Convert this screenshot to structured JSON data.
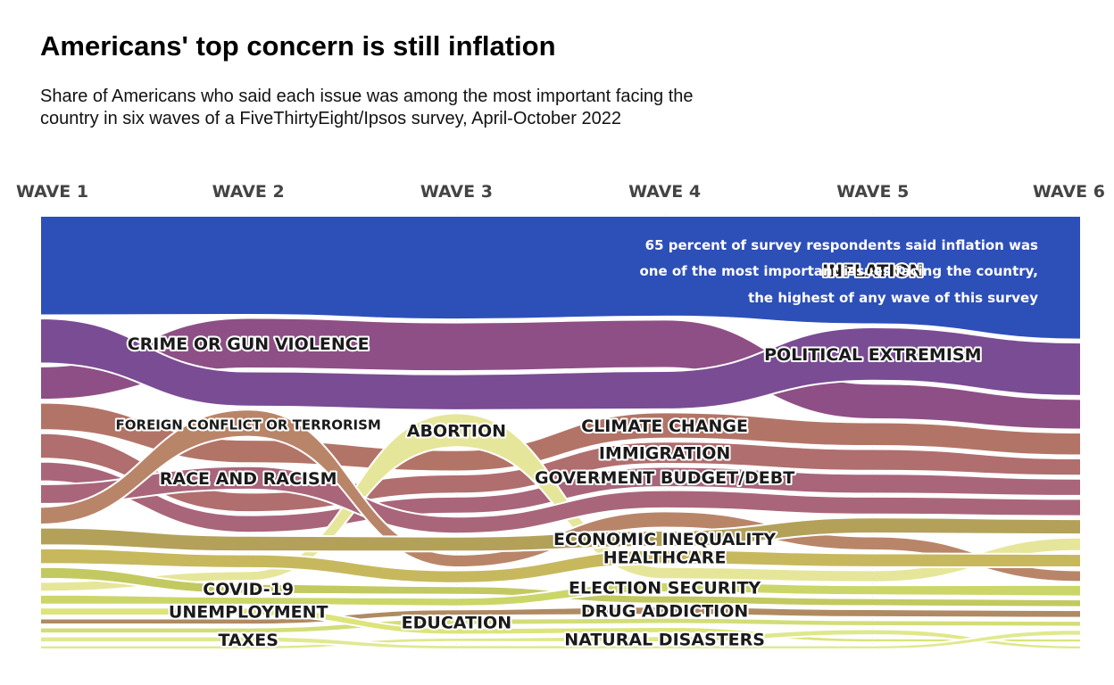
{
  "title": "Americans' top concern is still inflation",
  "subtitle": "Share of Americans who said each issue was among the most important facing the\n country in six waves of a FiveThirtyEight/Ipsos survey, April-October 2022",
  "annotation": [
    "65 percent of survey respondents said inflation was",
    "one of the most important issues facing the country,",
    "the highest of any wave of this survey"
  ],
  "chart_data": {
    "type": "area",
    "subtype": "ranked stream / bump area chart",
    "x": [
      "WAVE 1",
      "WAVE 2",
      "WAVE 3",
      "WAVE 4",
      "WAVE 5",
      "WAVE 6"
    ],
    "series": [
      {
        "name": "INFLATION",
        "color": "#2d4fb8",
        "values": [
          51,
          51,
          49,
          50,
          55,
          65
        ]
      },
      {
        "name": "CRIME OR GUN VIOLENCE",
        "color": "#8e4f86",
        "values": [
          17,
          26,
          23,
          24,
          18,
          16
        ]
      },
      {
        "name": "POLITICAL EXTREMISM",
        "color": "#7a4c94",
        "values": [
          23,
          18,
          17,
          19,
          27,
          28
        ]
      },
      {
        "name": "CLIMATE CHANGE",
        "color": "#b37468",
        "values": [
          14,
          12,
          10,
          13,
          12,
          12
        ]
      },
      {
        "name": "IMMIGRATION",
        "color": "#b06e6e",
        "values": [
          13,
          10,
          9,
          11,
          11,
          9
        ]
      },
      {
        "name": "GOVERMENT BUDGET/DEBT",
        "color": "#a9657a",
        "values": [
          10,
          9,
          8,
          10,
          10,
          9
        ]
      },
      {
        "name": "ABORTION",
        "color": "#e6e69a",
        "values": [
          5,
          5,
          16,
          6,
          6,
          7
        ]
      },
      {
        "name": "RACE AND RACISM",
        "color": "#a9667a",
        "values": [
          10,
          12,
          8,
          9,
          9,
          9
        ]
      },
      {
        "name": "FOREIGN CONFLICT OR TERRORISM",
        "color": "#b98569",
        "values": [
          9,
          14,
          6,
          8,
          7,
          6
        ]
      },
      {
        "name": "ECONOMIC INEQUALITY",
        "color": "#b3a15a",
        "values": [
          9,
          8,
          7,
          8,
          8,
          8
        ]
      },
      {
        "name": "HEALTHCARE",
        "color": "#c7b85e",
        "values": [
          8,
          7,
          6,
          7,
          7,
          7
        ]
      },
      {
        "name": "COVID-19",
        "color": "#c2c960",
        "values": [
          6,
          5,
          4,
          4,
          4,
          4
        ]
      },
      {
        "name": "ELECTION SECURITY",
        "color": "#cbd668",
        "values": [
          5,
          4,
          4,
          5,
          5,
          6
        ]
      },
      {
        "name": "DRUG ADDICTION",
        "color": "#b08a63",
        "values": [
          3,
          3,
          3,
          4,
          4,
          4
        ]
      },
      {
        "name": "EDUCATION",
        "color": "#d3dd78",
        "values": [
          3,
          3,
          3,
          3,
          3,
          3
        ]
      },
      {
        "name": "UNEMPLOYMENT",
        "color": "#dce47a",
        "values": [
          4,
          4,
          3,
          3,
          2,
          2
        ]
      },
      {
        "name": "NATURAL DISASTERS",
        "color": "#dfe88a",
        "values": [
          2,
          2,
          2,
          3,
          3,
          2
        ]
      },
      {
        "name": "TAXES",
        "color": "#e0e990",
        "values": [
          3,
          3,
          2,
          2,
          2,
          3
        ]
      }
    ],
    "xlabel": "",
    "ylabel": "",
    "legend": "none (direct labels)"
  }
}
